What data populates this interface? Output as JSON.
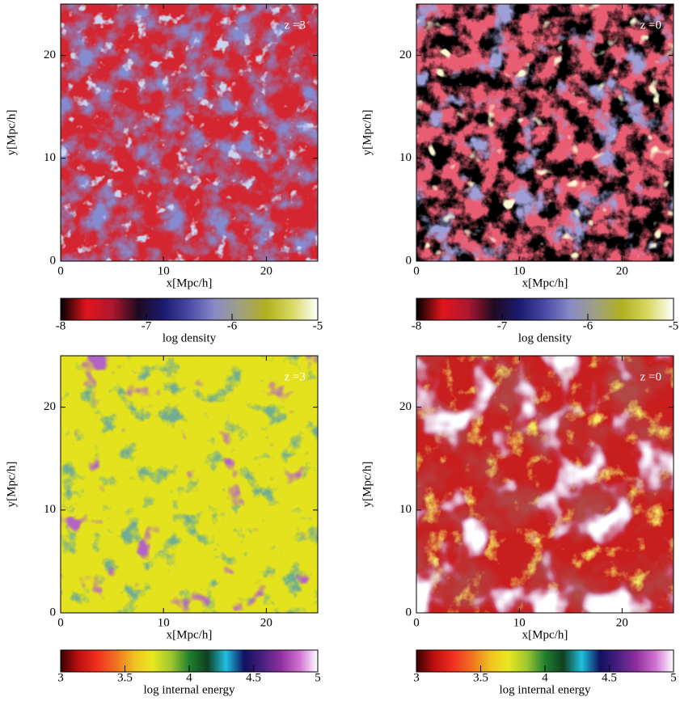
{
  "chart_data": [
    {
      "type": "image",
      "annotation": "z =3",
      "xlabel": "x[Mpc/h]",
      "ylabel": "y[Mpc/h]",
      "xlim": [
        0,
        25
      ],
      "ylim": [
        0,
        25
      ],
      "xticks": [
        0,
        10,
        20
      ],
      "yticks": [
        0,
        10,
        20
      ],
      "colorbar": {
        "label": "log density",
        "lim": [
          -8,
          -5
        ],
        "ticks": [
          -8,
          -7,
          -6,
          -5
        ],
        "colors": [
          "#000000",
          "#e0141c",
          "#b01830",
          "#200a20",
          "#1a1a70",
          "#4a4aa8",
          "#8a8ac8",
          "#a0a080",
          "#b0b020",
          "#d8d860",
          "#ffffff"
        ]
      }
    },
    {
      "type": "image",
      "annotation": "z =0",
      "xlabel": "x[Mpc/h]",
      "ylabel": "y[Mpc/h]",
      "xlim": [
        0,
        25
      ],
      "ylim": [
        0,
        25
      ],
      "xticks": [
        0,
        10,
        20
      ],
      "yticks": [
        0,
        10,
        20
      ],
      "colorbar": {
        "label": "log density",
        "lim": [
          -8,
          -5
        ],
        "ticks": [
          -8,
          -7,
          -6,
          -5
        ],
        "colors": [
          "#000000",
          "#e0141c",
          "#b01830",
          "#200a20",
          "#1a1a70",
          "#4a4aa8",
          "#8a8ac8",
          "#a0a080",
          "#b0b020",
          "#d8d860",
          "#ffffff"
        ]
      }
    },
    {
      "type": "image",
      "annotation": "z =3",
      "xlabel": "x[Mpc/h]",
      "ylabel": "y[Mpc/h]",
      "xlim": [
        0,
        25
      ],
      "ylim": [
        0,
        25
      ],
      "xticks": [
        0,
        10,
        20
      ],
      "yticks": [
        0,
        10,
        20
      ],
      "colorbar": {
        "label": "log internal energy",
        "lim": [
          3,
          5
        ],
        "ticks": [
          3,
          3.5,
          4,
          4.5,
          5
        ],
        "colors": [
          "#3a0000",
          "#c01010",
          "#f03020",
          "#f07020",
          "#f0c020",
          "#e8e820",
          "#a0c830",
          "#208030",
          "#104020",
          "#20c0e0",
          "#101060",
          "#4a2080",
          "#9030a0",
          "#d070d0",
          "#ffffff"
        ]
      }
    },
    {
      "type": "image",
      "annotation": "z =0",
      "xlabel": "x[Mpc/h]",
      "ylabel": "y[Mpc/h]",
      "xlim": [
        0,
        25
      ],
      "ylim": [
        0,
        25
      ],
      "xticks": [
        0,
        10,
        20
      ],
      "yticks": [
        0,
        10,
        20
      ],
      "colorbar": {
        "label": "log internal energy",
        "lim": [
          3,
          5
        ],
        "ticks": [
          3,
          3.5,
          4,
          4.5,
          5
        ],
        "colors": [
          "#3a0000",
          "#c01010",
          "#f03020",
          "#f07020",
          "#f0c020",
          "#e8e820",
          "#a0c830",
          "#208030",
          "#104020",
          "#20c0e0",
          "#101060",
          "#4a2080",
          "#9030a0",
          "#d070d0",
          "#ffffff"
        ]
      }
    }
  ]
}
